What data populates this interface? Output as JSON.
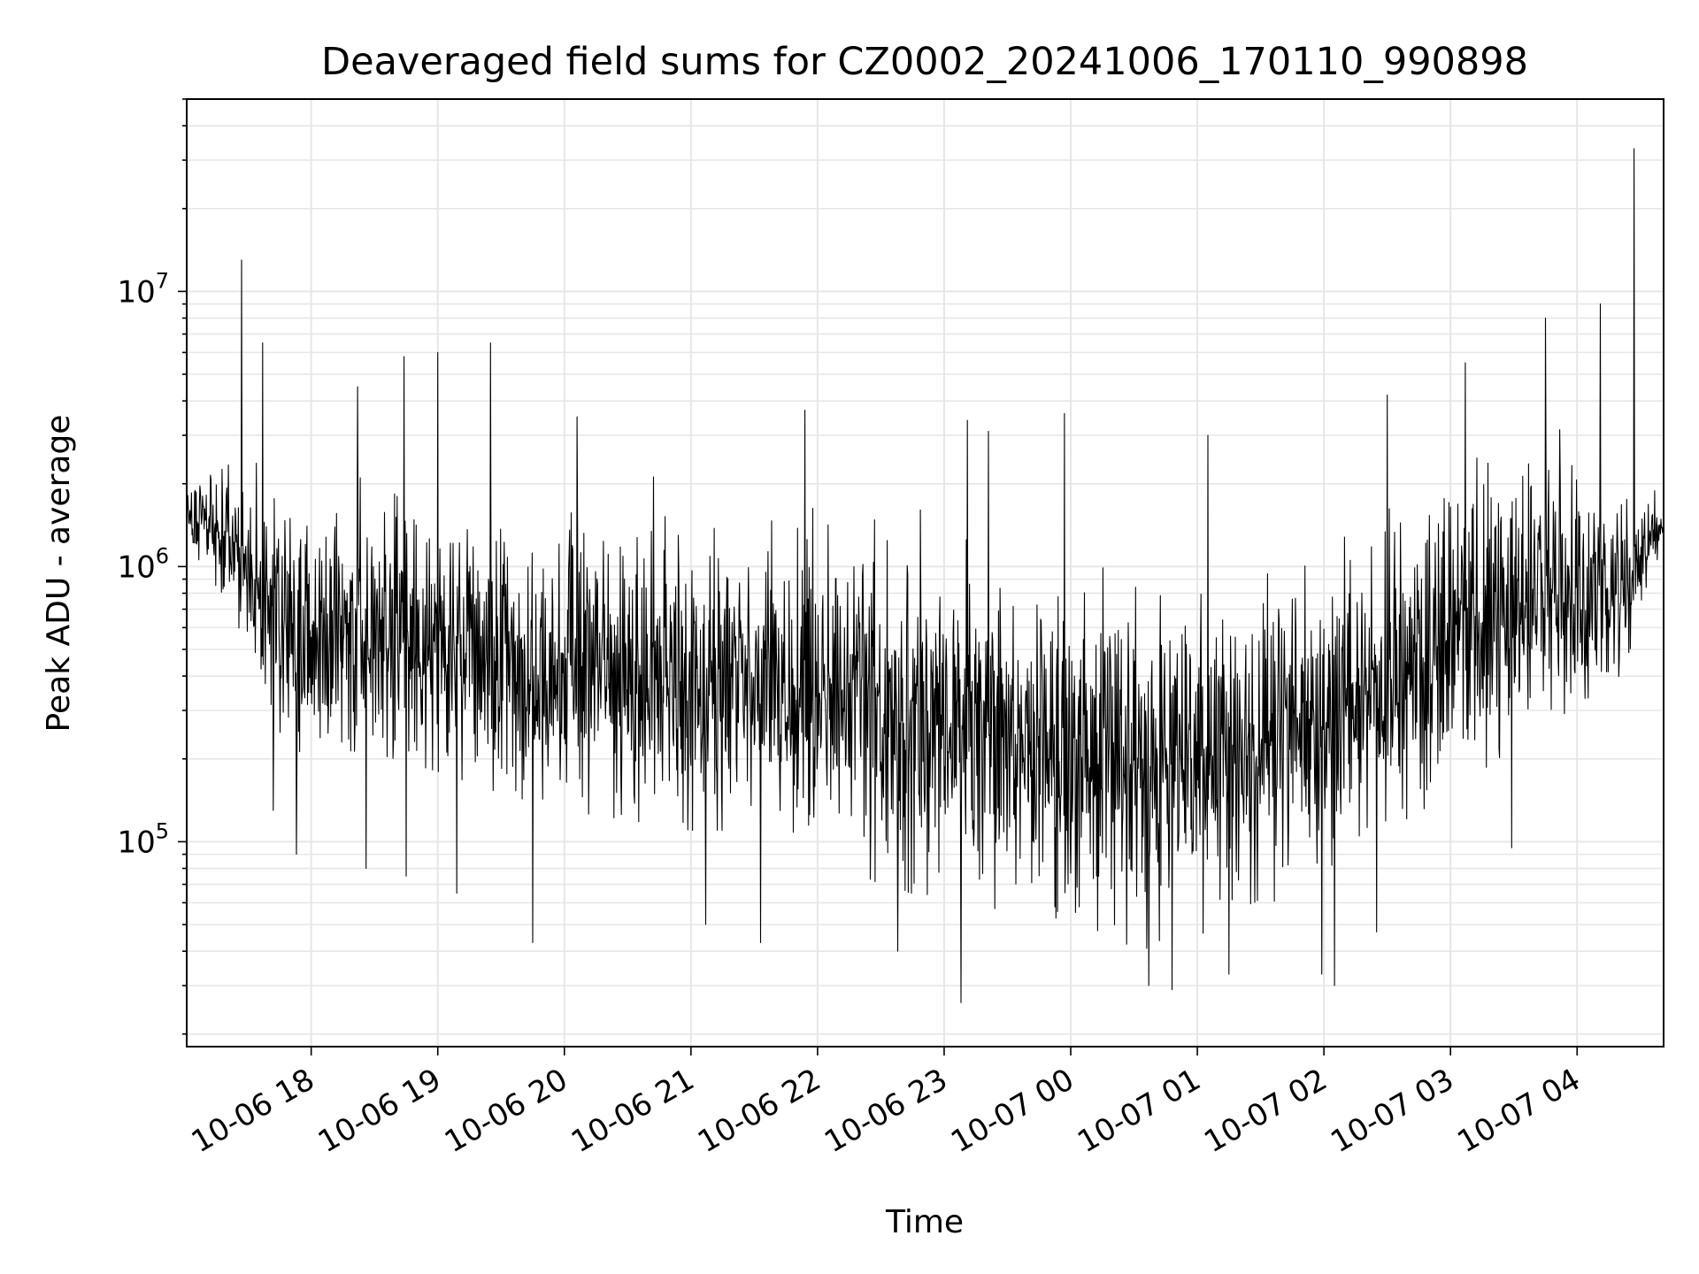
{
  "chart_data": {
    "type": "line",
    "title": "Deaveraged field sums for CZ0002_20241006_170110_990898",
    "xlabel": "Time",
    "ylabel": "Peak ADU - average",
    "yscale": "log",
    "xlim": [
      "2024-10-06 17:01",
      "2024-10-07 04:41"
    ],
    "ylim": [
      18000,
      50000000
    ],
    "grid": true,
    "line_color": "#000000",
    "x_ticks": [
      "2024-10-06 18:00",
      "2024-10-06 19:00",
      "2024-10-06 20:00",
      "2024-10-06 21:00",
      "2024-10-06 22:00",
      "2024-10-06 23:00",
      "2024-10-07 00:00",
      "2024-10-07 01:00",
      "2024-10-07 02:00",
      "2024-10-07 03:00",
      "2024-10-07 04:00"
    ],
    "x_tick_labels": [
      "10-06 18",
      "10-06 19",
      "10-06 20",
      "10-06 21",
      "10-06 22",
      "10-06 23",
      "10-07 00",
      "10-07 01",
      "10-07 02",
      "10-07 03",
      "10-07 04"
    ],
    "y_ticks": [
      100000,
      1000000,
      10000000
    ],
    "y_tick_labels": [
      {
        "base": "10",
        "exp": "5"
      },
      {
        "base": "10",
        "exp": "6"
      },
      {
        "base": "10",
        "exp": "7"
      }
    ],
    "series": [
      {
        "envelope": [
          {
            "x": "2024-10-06 17:01",
            "median": 1500000,
            "low": 1050000,
            "high": 2100000
          },
          {
            "x": "2024-10-06 17:15",
            "median": 1350000,
            "low": 850000,
            "high": 3500000
          },
          {
            "x": "2024-10-06 17:30",
            "median": 1050000,
            "low": 520000,
            "high": 3200000
          },
          {
            "x": "2024-10-06 17:45",
            "median": 600000,
            "low": 200000,
            "high": 2700000
          },
          {
            "x": "2024-10-06 18:00",
            "median": 550000,
            "low": 220000,
            "high": 2500000
          },
          {
            "x": "2024-10-06 18:30",
            "median": 580000,
            "low": 210000,
            "high": 3000000
          },
          {
            "x": "2024-10-06 19:00",
            "median": 530000,
            "low": 180000,
            "high": 3200000
          },
          {
            "x": "2024-10-06 19:30",
            "median": 480000,
            "low": 150000,
            "high": 2800000
          },
          {
            "x": "2024-10-06 20:00",
            "median": 430000,
            "low": 130000,
            "high": 2600000
          },
          {
            "x": "2024-10-06 20:30",
            "median": 400000,
            "low": 120000,
            "high": 2200000
          },
          {
            "x": "2024-10-06 21:00",
            "median": 380000,
            "low": 110000,
            "high": 2000000
          },
          {
            "x": "2024-10-06 21:30",
            "median": 370000,
            "low": 110000,
            "high": 2000000
          },
          {
            "x": "2024-10-06 22:00",
            "median": 340000,
            "low": 90000,
            "high": 2000000
          },
          {
            "x": "2024-10-06 22:30",
            "median": 300000,
            "low": 70000,
            "high": 1800000
          },
          {
            "x": "2024-10-06 23:00",
            "median": 260000,
            "low": 60000,
            "high": 1500000
          },
          {
            "x": "2024-10-06 23:30",
            "median": 230000,
            "low": 50000,
            "high": 1300000
          },
          {
            "x": "2024-10-07 00:00",
            "median": 200000,
            "low": 45000,
            "high": 1200000
          },
          {
            "x": "2024-10-07 00:30",
            "median": 190000,
            "low": 40000,
            "high": 1200000
          },
          {
            "x": "2024-10-07 01:00",
            "median": 200000,
            "low": 45000,
            "high": 1100000
          },
          {
            "x": "2024-10-07 01:30",
            "median": 230000,
            "low": 55000,
            "high": 1200000
          },
          {
            "x": "2024-10-07 02:00",
            "median": 280000,
            "low": 70000,
            "high": 1300000
          },
          {
            "x": "2024-10-07 02:30",
            "median": 420000,
            "low": 110000,
            "high": 2200000
          },
          {
            "x": "2024-10-07 03:00",
            "median": 550000,
            "low": 150000,
            "high": 2700000
          },
          {
            "x": "2024-10-07 03:30",
            "median": 750000,
            "low": 220000,
            "high": 3000000
          },
          {
            "x": "2024-10-07 04:00",
            "median": 850000,
            "low": 300000,
            "high": 3200000
          },
          {
            "x": "2024-10-07 04:20",
            "median": 800000,
            "low": 400000,
            "high": 2500000
          },
          {
            "x": "2024-10-07 04:41",
            "median": 1400000,
            "low": 1000000,
            "high": 1800000
          }
        ],
        "spikes_up": [
          {
            "x": "2024-10-06 17:27",
            "y": 13000000
          },
          {
            "x": "2024-10-06 17:37",
            "y": 6500000
          },
          {
            "x": "2024-10-06 18:22",
            "y": 4500000
          },
          {
            "x": "2024-10-06 18:44",
            "y": 5800000
          },
          {
            "x": "2024-10-06 19:00",
            "y": 6000000
          },
          {
            "x": "2024-10-06 19:25",
            "y": 6500000
          },
          {
            "x": "2024-10-06 20:06",
            "y": 3500000
          },
          {
            "x": "2024-10-06 21:54",
            "y": 3700000
          },
          {
            "x": "2024-10-06 23:11",
            "y": 3400000
          },
          {
            "x": "2024-10-06 23:21",
            "y": 3100000
          },
          {
            "x": "2024-10-06 23:57",
            "y": 3600000
          },
          {
            "x": "2024-10-07 01:05",
            "y": 3000000
          },
          {
            "x": "2024-10-07 02:30",
            "y": 4200000
          },
          {
            "x": "2024-10-07 03:07",
            "y": 5500000
          },
          {
            "x": "2024-10-07 03:45",
            "y": 8000000
          },
          {
            "x": "2024-10-07 04:11",
            "y": 9000000
          },
          {
            "x": "2024-10-07 04:27",
            "y": 33000000
          }
        ],
        "spikes_down": [
          {
            "x": "2024-10-06 17:42",
            "y": 130000
          },
          {
            "x": "2024-10-06 17:53",
            "y": 90000
          },
          {
            "x": "2024-10-06 18:26",
            "y": 80000
          },
          {
            "x": "2024-10-06 18:45",
            "y": 75000
          },
          {
            "x": "2024-10-06 19:09",
            "y": 65000
          },
          {
            "x": "2024-10-06 19:45",
            "y": 43000
          },
          {
            "x": "2024-10-06 21:07",
            "y": 50000
          },
          {
            "x": "2024-10-06 21:33",
            "y": 43000
          },
          {
            "x": "2024-10-06 22:38",
            "y": 40000
          },
          {
            "x": "2024-10-06 23:08",
            "y": 26000
          },
          {
            "x": "2024-10-07 00:37",
            "y": 30000
          },
          {
            "x": "2024-10-07 00:48",
            "y": 29000
          },
          {
            "x": "2024-10-07 01:15",
            "y": 33000
          },
          {
            "x": "2024-10-07 01:59",
            "y": 33000
          },
          {
            "x": "2024-10-07 02:05",
            "y": 30000
          },
          {
            "x": "2024-10-07 02:25",
            "y": 47000
          },
          {
            "x": "2024-10-07 03:29",
            "y": 95000
          }
        ]
      }
    ]
  }
}
